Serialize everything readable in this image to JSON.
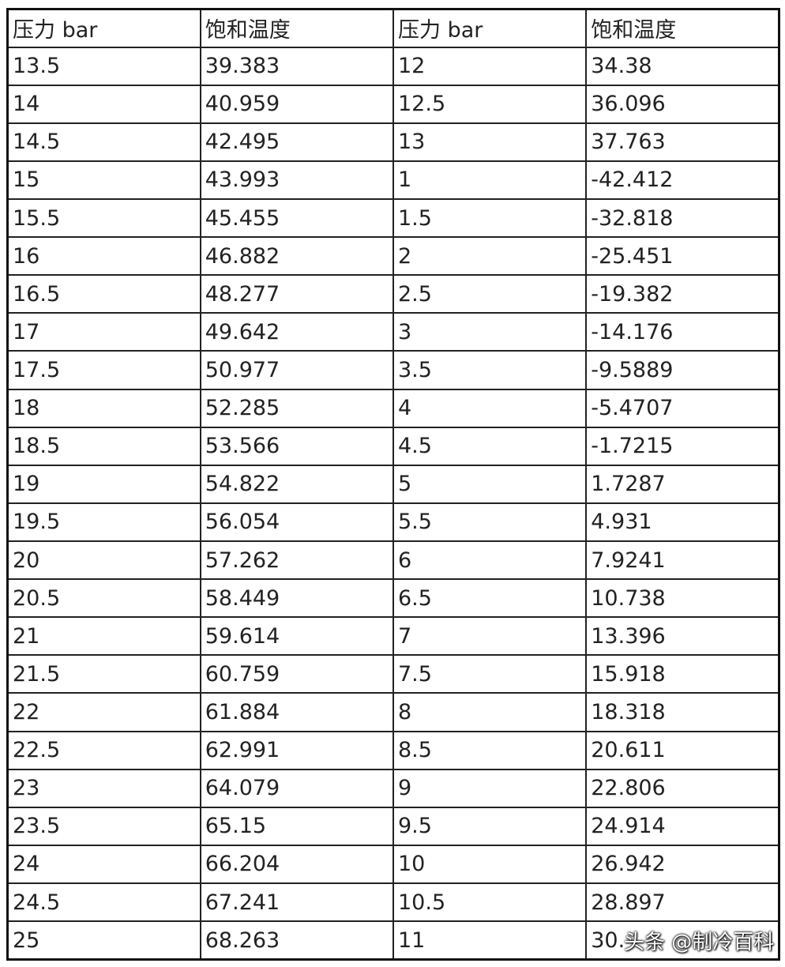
{
  "table": {
    "header": [
      "压力 bar",
      "饱和温度",
      "压力 bar",
      "饱和温度"
    ],
    "rows": [
      [
        "13.5",
        "39.383",
        "12",
        "34.38"
      ],
      [
        "14",
        "40.959",
        "12.5",
        "36.096"
      ],
      [
        "14.5",
        "42.495",
        "13",
        "37.763"
      ],
      [
        "15",
        "43.993",
        "1",
        "-42.412"
      ],
      [
        "15.5",
        "45.455",
        "1.5",
        "-32.818"
      ],
      [
        "16",
        "46.882",
        "2",
        "-25.451"
      ],
      [
        "16.5",
        "48.277",
        "2.5",
        "-19.382"
      ],
      [
        "17",
        "49.642",
        "3",
        "-14.176"
      ],
      [
        "17.5",
        "50.977",
        "3.5",
        "-9.5889"
      ],
      [
        "18",
        "52.285",
        "4",
        "-5.4707"
      ],
      [
        "18.5",
        "53.566",
        "4.5",
        "-1.7215"
      ],
      [
        "19",
        "54.822",
        "5",
        "1.7287"
      ],
      [
        "19.5",
        "56.054",
        "5.5",
        "4.931"
      ],
      [
        "20",
        "57.262",
        "6",
        "7.9241"
      ],
      [
        "20.5",
        "58.449",
        "6.5",
        "10.738"
      ],
      [
        "21",
        "59.614",
        "7",
        "13.396"
      ],
      [
        "21.5",
        "60.759",
        "7.5",
        "15.918"
      ],
      [
        "22",
        "61.884",
        "8",
        "18.318"
      ],
      [
        "22.5",
        "62.991",
        "8.5",
        "20.611"
      ],
      [
        "23",
        "64.079",
        "9",
        "22.806"
      ],
      [
        "23.5",
        "65.15",
        "9.5",
        "24.914"
      ],
      [
        "24",
        "66.204",
        "10",
        "26.942"
      ],
      [
        "24.5",
        "67.241",
        "10.5",
        "28.897"
      ],
      [
        "25",
        "68.263",
        "11",
        "30."
      ]
    ]
  },
  "watermark": "头条 @制冷百科"
}
